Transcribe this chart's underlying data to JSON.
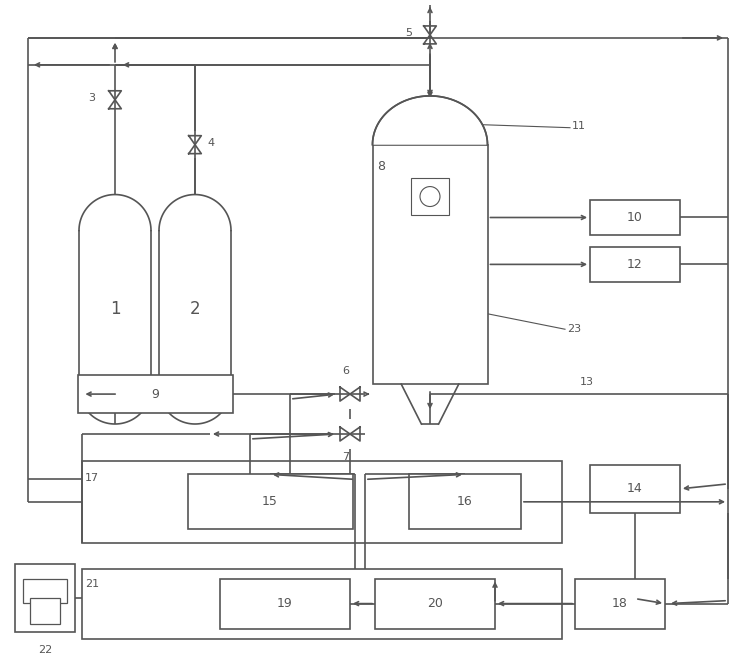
{
  "bg_color": "#ffffff",
  "line_color": "#555555",
  "lw": 1.2,
  "figsize": [
    7.56,
    6.58
  ],
  "dpi": 100
}
